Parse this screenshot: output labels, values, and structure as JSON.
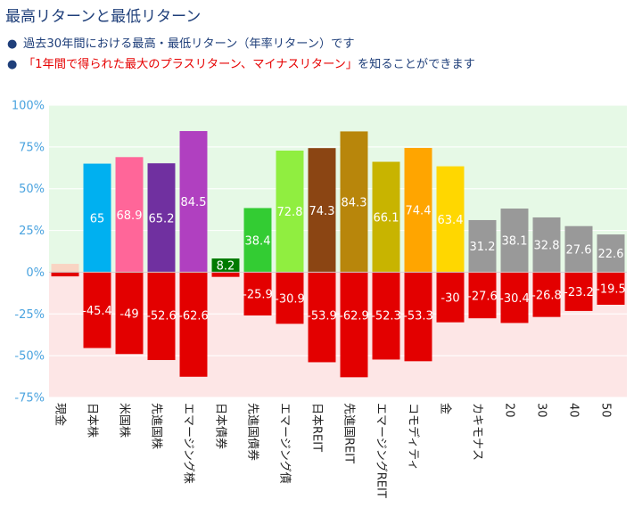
{
  "page": {
    "title": "最高リターンと最低リターン",
    "bullets": [
      {
        "text": "過去30年間における最高・最低リターン（年率リターン）です",
        "highlight": "",
        "rest": ""
      },
      {
        "text": "",
        "highlight": "「1年間で得られた最大のプラスリターン、マイナスリターン」",
        "rest": "を知ることができます"
      }
    ]
  },
  "colors": {
    "positive_zone": "#e6f9e6",
    "negative_zone": "#fde6e6",
    "axis_text": "#4aa3df",
    "negative_bar": "#e30000"
  },
  "chart_data": {
    "type": "bar",
    "title": "",
    "xlabel": "",
    "ylabel": "",
    "ylim": [
      -75,
      100
    ],
    "yticks": [
      "100%",
      "75%",
      "50%",
      "25%",
      "0%",
      "-25%",
      "-50%",
      "-75%"
    ],
    "ytick_values": [
      100,
      75,
      50,
      25,
      0,
      -25,
      -50,
      -75
    ],
    "categories": [
      "現金",
      "日本株",
      "米国株",
      "先進国株",
      "エマージング株",
      "日本債券",
      "先進国債券",
      "エマージング債",
      "日本REIT",
      "先進国REIT",
      "エマージングREIT",
      "コモディティ",
      "金",
      "カキモナス",
      "20",
      "30",
      "40",
      "50"
    ],
    "series": [
      {
        "role": "max",
        "values": [
          5,
          65,
          68.9,
          65.2,
          84.5,
          8.2,
          38.4,
          72.8,
          74.3,
          84.3,
          66.1,
          74.4,
          63.4,
          31.2,
          38.1,
          32.8,
          27.6,
          22.6
        ],
        "labels": [
          "",
          "65",
          "68.9",
          "65.2",
          "84.5",
          "8.2",
          "38.4",
          "72.8",
          "74.3",
          "84.3",
          "66.1",
          "74.4",
          "63.4",
          "31.2",
          "38.1",
          "32.8",
          "27.6",
          "22.6"
        ],
        "colors": [
          "#f9d4c3",
          "#00b0f0",
          "#ff6699",
          "#7030a0",
          "#b040c0",
          "#007a00",
          "#33cc33",
          "#90ee40",
          "#8b4513",
          "#b8860b",
          "#c8b400",
          "#ffa500",
          "#ffd700",
          "#999999",
          "#999999",
          "#999999",
          "#999999",
          "#999999"
        ]
      },
      {
        "role": "min",
        "values": [
          -2.5,
          -45.4,
          -49,
          -52.6,
          -62.6,
          -2.8,
          -25.9,
          -30.9,
          -53.9,
          -62.9,
          -52.3,
          -53.3,
          -30,
          -27.6,
          -30.4,
          -26.8,
          -23.2,
          -19.5
        ],
        "labels": [
          "",
          "-45.4",
          "-49",
          "-52.6",
          "-62.6",
          "",
          "-25.9",
          "-30.9",
          "-53.9",
          "-62.9",
          "-52.3",
          "-53.3",
          "-30",
          "-27.6",
          "-30.4",
          "-26.8",
          "-23.2",
          "-19.5"
        ]
      }
    ],
    "grid": true
  }
}
